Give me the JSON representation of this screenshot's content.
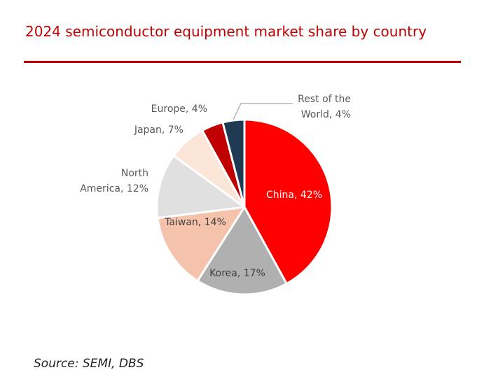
{
  "title": "2024 semiconductor equipment market share by country",
  "source": "Source: SEMI, DBS",
  "chart_data": {
    "type": "pie",
    "title": "2024 semiconductor equipment market share by country",
    "unit": "%",
    "start_angle_deg": 0,
    "direction": "clockwise",
    "slices": [
      {
        "key": "china",
        "name": "China",
        "value": 42,
        "color": "#ff0000",
        "label": "China, 42%",
        "label_color": "#ffffff"
      },
      {
        "key": "korea",
        "name": "Korea",
        "value": 17,
        "color": "#b0b0b0",
        "label": "Korea, 17%",
        "label_color": "#404040"
      },
      {
        "key": "taiwan",
        "name": "Taiwan",
        "value": 14,
        "color": "#f5c3ab",
        "label": "Taiwan, 14%",
        "label_color": "#404040"
      },
      {
        "key": "north-america",
        "name": "North America",
        "value": 12,
        "color": "#e0e0e0",
        "label": [
          "North",
          "America, 12%"
        ],
        "label_color": "#595959"
      },
      {
        "key": "japan",
        "name": "Japan",
        "value": 7,
        "color": "#fbe4d8",
        "label": "Japan, 7%",
        "label_color": "#595959"
      },
      {
        "key": "europe",
        "name": "Europe",
        "value": 4,
        "color": "#c00000",
        "label": "Europe, 4%",
        "label_color": "#595959"
      },
      {
        "key": "rest-of-world",
        "name": "Rest of the World",
        "value": 4,
        "color": "#1f3a52",
        "label": [
          "Rest of the",
          "World, 4%"
        ],
        "label_color": "#595959"
      }
    ]
  }
}
